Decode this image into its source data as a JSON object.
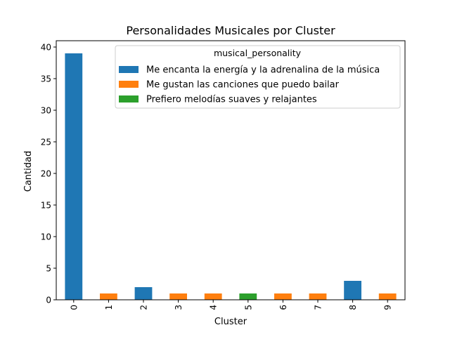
{
  "chart_data": {
    "type": "bar",
    "title": "Personalidades Musicales por Cluster",
    "xlabel": "Cluster",
    "ylabel": "Cantidad",
    "categories": [
      "0",
      "1",
      "2",
      "3",
      "4",
      "5",
      "6",
      "7",
      "8",
      "9"
    ],
    "ylim": [
      0,
      41
    ],
    "yticks": [
      0,
      5,
      10,
      15,
      20,
      25,
      30,
      35,
      40
    ],
    "grid": false,
    "stacked": true,
    "legend": {
      "title": "musical_personality",
      "placement": "top-right"
    },
    "series": [
      {
        "name": "Me encanta la energía y la adrenalina de la música",
        "color": "#1f77b4",
        "values": [
          39,
          0,
          2,
          0,
          0,
          0,
          0,
          0,
          3,
          0
        ]
      },
      {
        "name": "Me gustan las canciones que puedo bailar",
        "color": "#ff7f0e",
        "values": [
          0,
          1,
          0,
          1,
          1,
          0,
          1,
          1,
          0,
          1
        ]
      },
      {
        "name": "Prefiero melodías suaves y relajantes",
        "color": "#2ca02c",
        "values": [
          0,
          0,
          0,
          0,
          0,
          1,
          0,
          0,
          0,
          0
        ]
      }
    ]
  }
}
